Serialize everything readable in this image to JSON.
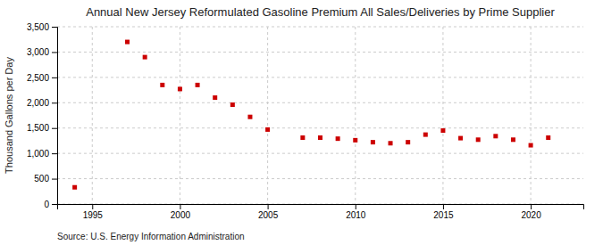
{
  "chart_data": {
    "type": "scatter",
    "title": "Annual New Jersey Reformulated Gasoline Premium All Sales/Deliveries by Prime Supplier",
    "ylabel": "Thousand Gallons per Day",
    "source": "Source: U.S. Energy Information Administration",
    "x": [
      1994,
      1997,
      1998,
      1999,
      2000,
      2001,
      2002,
      2003,
      2004,
      2005,
      2007,
      2008,
      2009,
      2010,
      2011,
      2012,
      2013,
      2014,
      2015,
      2016,
      2017,
      2018,
      2019,
      2020,
      2021
    ],
    "values": [
      330,
      3200,
      2900,
      2350,
      2270,
      2350,
      2100,
      1960,
      1720,
      1470,
      1310,
      1310,
      1290,
      1260,
      1220,
      1200,
      1220,
      1370,
      1450,
      1300,
      1270,
      1340,
      1270,
      1160,
      1310
    ],
    "color": "#cc0000",
    "marker": "square",
    "xlim": [
      1993,
      2023
    ],
    "ylim": [
      0,
      3500
    ],
    "xticks": [
      1995,
      2000,
      2005,
      2010,
      2015,
      2020
    ],
    "yticks": [
      0,
      500,
      {
        "value": 1000,
        "label": "1,000"
      },
      {
        "value": 1500,
        "label": "1,500"
      },
      {
        "value": 2000,
        "label": "2,000"
      },
      {
        "value": 2500,
        "label": "2,500"
      },
      {
        "value": 3000,
        "label": "3,000"
      },
      {
        "value": 3500,
        "label": "3,500"
      }
    ],
    "grid": true
  }
}
